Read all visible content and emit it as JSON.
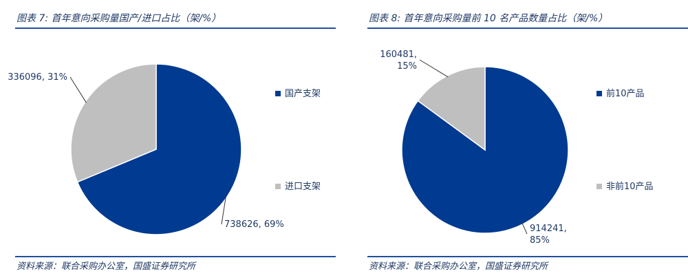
{
  "charts": [
    {
      "title": "图表 7:  首年意向采购量国产/进口占比（架/%）",
      "source": "资料来源：联合采购办公室，国盛证券研究所"
    },
    {
      "title": "图表 8:  首年意向采购量前 10 名产品数量占比（架/%）",
      "source": "资料来源：联合采购办公室，国盛证券研究所"
    }
  ],
  "chart_data": [
    {
      "type": "pie",
      "title": "图表 7:  首年意向采购量国产/进口占比（架/%）",
      "slices": [
        {
          "name": "国产支架",
          "value": 738626,
          "percent": 69,
          "color": "#003a91",
          "label_lines": [
            "738626, 69%"
          ]
        },
        {
          "name": "进口支架",
          "value": 336096,
          "percent": 31,
          "color": "#bfbfbf",
          "label_lines": [
            "336096, 31%"
          ]
        }
      ],
      "legend_position": "right"
    },
    {
      "type": "pie",
      "title": "图表 8:  首年意向采购量前 10 名产品数量占比（架/%）",
      "slices": [
        {
          "name": "前10产品",
          "value": 914241,
          "percent": 85,
          "color": "#003a91",
          "label_lines": [
            "914241,",
            "85%"
          ]
        },
        {
          "name": "非前10产品",
          "value": 160481,
          "percent": 15,
          "color": "#bfbfbf",
          "label_lines": [
            "160481,",
            "15%"
          ]
        }
      ],
      "legend_position": "right"
    }
  ]
}
